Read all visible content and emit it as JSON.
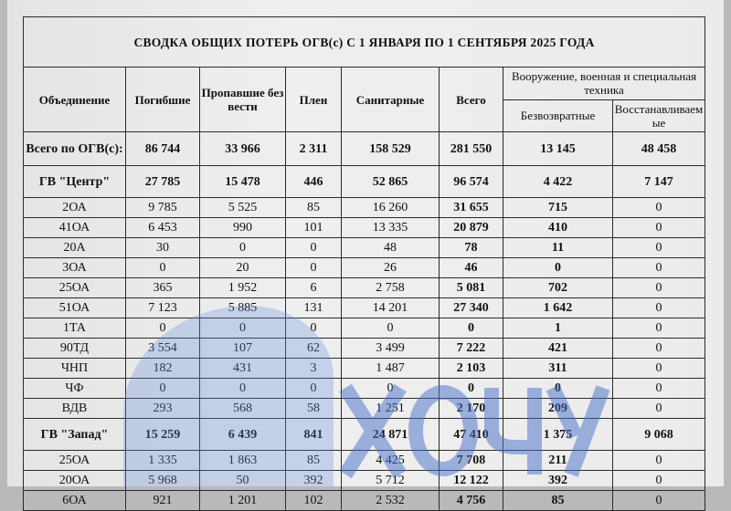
{
  "title": "СВОДКА ОБЩИХ ПОТЕРЬ ОГВ(с) С 1 ЯНВАРЯ ПО 1 СЕНТЯБРЯ 2025 ГОДА",
  "headers": {
    "unit": "Объединение",
    "killed": "Погибшие",
    "missing": "Пропавшие без вести",
    "captured": "Плен",
    "sanitary": "Санитарные",
    "total": "Всего",
    "equipment": "Вооружение, военная и специальная техника",
    "irrecoverable": "Безвозвратные",
    "recoverable": "Восстанавливаемые"
  },
  "rows": [
    {
      "unit": "Всего по ОГВ(с):",
      "killed": "86 744",
      "missing": "33 966",
      "captured": "2 311",
      "sanitary": "158 529",
      "total": "281 550",
      "irrecoverable": "13 145",
      "recoverable": "48 458",
      "kind": "total"
    },
    {
      "unit": "ГВ \"Центр\"",
      "killed": "27 785",
      "missing": "15 478",
      "captured": "446",
      "sanitary": "52 865",
      "total": "96 574",
      "irrecoverable": "4 422",
      "recoverable": "7 147",
      "kind": "group"
    },
    {
      "unit": "2ОА",
      "killed": "9 785",
      "missing": "5 525",
      "captured": "85",
      "sanitary": "16 260",
      "total": "31 655",
      "irrecoverable": "715",
      "recoverable": "0"
    },
    {
      "unit": "41ОА",
      "killed": "6 453",
      "missing": "990",
      "captured": "101",
      "sanitary": "13 335",
      "total": "20 879",
      "irrecoverable": "410",
      "recoverable": "0"
    },
    {
      "unit": "20А",
      "killed": "30",
      "missing": "0",
      "captured": "0",
      "sanitary": "48",
      "total": "78",
      "irrecoverable": "11",
      "recoverable": "0"
    },
    {
      "unit": "3ОА",
      "killed": "0",
      "missing": "20",
      "captured": "0",
      "sanitary": "26",
      "total": "46",
      "irrecoverable": "0",
      "recoverable": "0"
    },
    {
      "unit": "25ОА",
      "killed": "365",
      "missing": "1 952",
      "captured": "6",
      "sanitary": "2 758",
      "total": "5 081",
      "irrecoverable": "702",
      "recoverable": "0"
    },
    {
      "unit": "51ОА",
      "killed": "7 123",
      "missing": "5 885",
      "captured": "131",
      "sanitary": "14 201",
      "total": "27 340",
      "irrecoverable": "1 642",
      "recoverable": "0"
    },
    {
      "unit": "1ТА",
      "killed": "0",
      "missing": "0",
      "captured": "0",
      "sanitary": "0",
      "total": "0",
      "irrecoverable": "1",
      "recoverable": "0"
    },
    {
      "unit": "90ТД",
      "killed": "3 554",
      "missing": "107",
      "captured": "62",
      "sanitary": "3 499",
      "total": "7 222",
      "irrecoverable": "421",
      "recoverable": "0"
    },
    {
      "unit": "ЧНП",
      "killed": "182",
      "missing": "431",
      "captured": "3",
      "sanitary": "1 487",
      "total": "2 103",
      "irrecoverable": "311",
      "recoverable": "0"
    },
    {
      "unit": "ЧФ",
      "killed": "0",
      "missing": "0",
      "captured": "0",
      "sanitary": "0",
      "total": "0",
      "irrecoverable": "0",
      "recoverable": "0"
    },
    {
      "unit": "ВДВ",
      "killed": "293",
      "missing": "568",
      "captured": "58",
      "sanitary": "1 251",
      "total": "2 170",
      "irrecoverable": "209",
      "recoverable": "0"
    },
    {
      "unit": "ГВ \"Запад\"",
      "killed": "15 259",
      "missing": "6 439",
      "captured": "841",
      "sanitary": "24 871",
      "total": "47 410",
      "irrecoverable": "1 375",
      "recoverable": "9 068",
      "kind": "group"
    },
    {
      "unit": "25ОА",
      "killed": "1 335",
      "missing": "1 863",
      "captured": "85",
      "sanitary": "4 425",
      "total": "7 708",
      "irrecoverable": "211",
      "recoverable": "0"
    },
    {
      "unit": "20ОА",
      "killed": "5 968",
      "missing": "50",
      "captured": "392",
      "sanitary": "5 712",
      "total": "12 122",
      "irrecoverable": "392",
      "recoverable": "0"
    },
    {
      "unit": "6ОА",
      "killed": "921",
      "missing": "1 201",
      "captured": "102",
      "sanitary": "2 532",
      "total": "4 756",
      "irrecoverable": "85",
      "recoverable": "0"
    }
  ],
  "watermark": "ХОЧУ ЖИТЬ",
  "colors": {
    "watermark": "#4a78c8",
    "paper": "#ececec"
  }
}
